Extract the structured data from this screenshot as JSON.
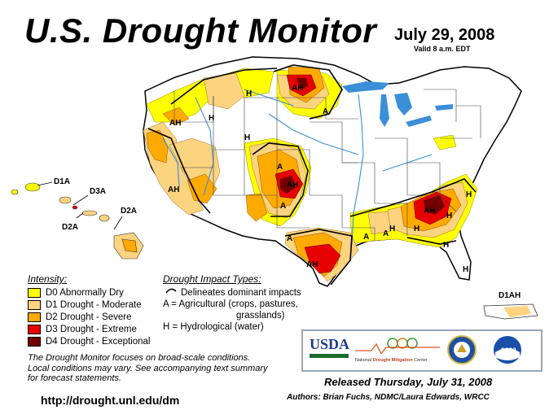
{
  "header": {
    "title": "U.S. Drought Monitor",
    "date": "July 29, 2008",
    "valid": "Valid 8 a.m. EDT"
  },
  "colors": {
    "d0": "#ffff00",
    "d1": "#fcd37f",
    "d2": "#ffaa00",
    "d3": "#e60000",
    "d4": "#730000",
    "water": "#3a8fd8",
    "ocean": "#ffffff"
  },
  "legend": {
    "intensity_heading": "Intensity:",
    "items": [
      {
        "label": "D0 Abnormally Dry",
        "color": "#ffff00"
      },
      {
        "label": "D1 Drought - Moderate",
        "color": "#fcd37f"
      },
      {
        "label": "D2 Drought - Severe",
        "color": "#ffaa00"
      },
      {
        "label": "D3 Drought - Extreme",
        "color": "#e60000"
      },
      {
        "label": "D4 Drought - Exceptional",
        "color": "#730000"
      }
    ],
    "impact_heading": "Drought Impact Types:",
    "impact_items": [
      "Delineates dominant impacts",
      "A = Agricultural (crops, pastures,",
      "grasslands)",
      "H = Hydrological (water)"
    ]
  },
  "map_labels": {
    "hawaii_d1a": "D1A",
    "hawaii_d3a": "D3A",
    "hawaii_d2a_left": "D2A",
    "hawaii_d2a_right": "D2A",
    "puerto_rico": "D1AH",
    "nw_ah": "AH",
    "ca_ah": "AH",
    "mt_h": "H",
    "id_h": "H",
    "wy_h": "H",
    "nd_ah": "AH",
    "ne_a": "A",
    "mn_a": "A",
    "co_ah": "AH",
    "ks_a": "A",
    "ok_a": "A",
    "tx_ah": "AH",
    "tx_a_east": "A",
    "ar_a": "A",
    "ms_h": "H",
    "al_h": "H",
    "ga_ah": "AH",
    "nc_h": "H",
    "sc_h": "H",
    "fl_h": "H",
    "se_h": "H"
  },
  "footer": {
    "note_line1": "The Drought Monitor focuses on broad-scale conditions.",
    "note_line2": "Local conditions may vary. See accompanying text summary",
    "note_line3": "for forecast statements.",
    "url": "http://drought.unl.edu/dm",
    "released": "Released Thursday, July 31, 2008",
    "authors": "Authors: Brian Fuchs, NDMC/Laura Edwards, WRCC"
  },
  "logos": {
    "usda": "USDA",
    "ndmc_prefix": "National",
    "ndmc_name": "Drought Mitigation",
    "ndmc_suffix": "Center",
    "noaa": "noaa"
  }
}
